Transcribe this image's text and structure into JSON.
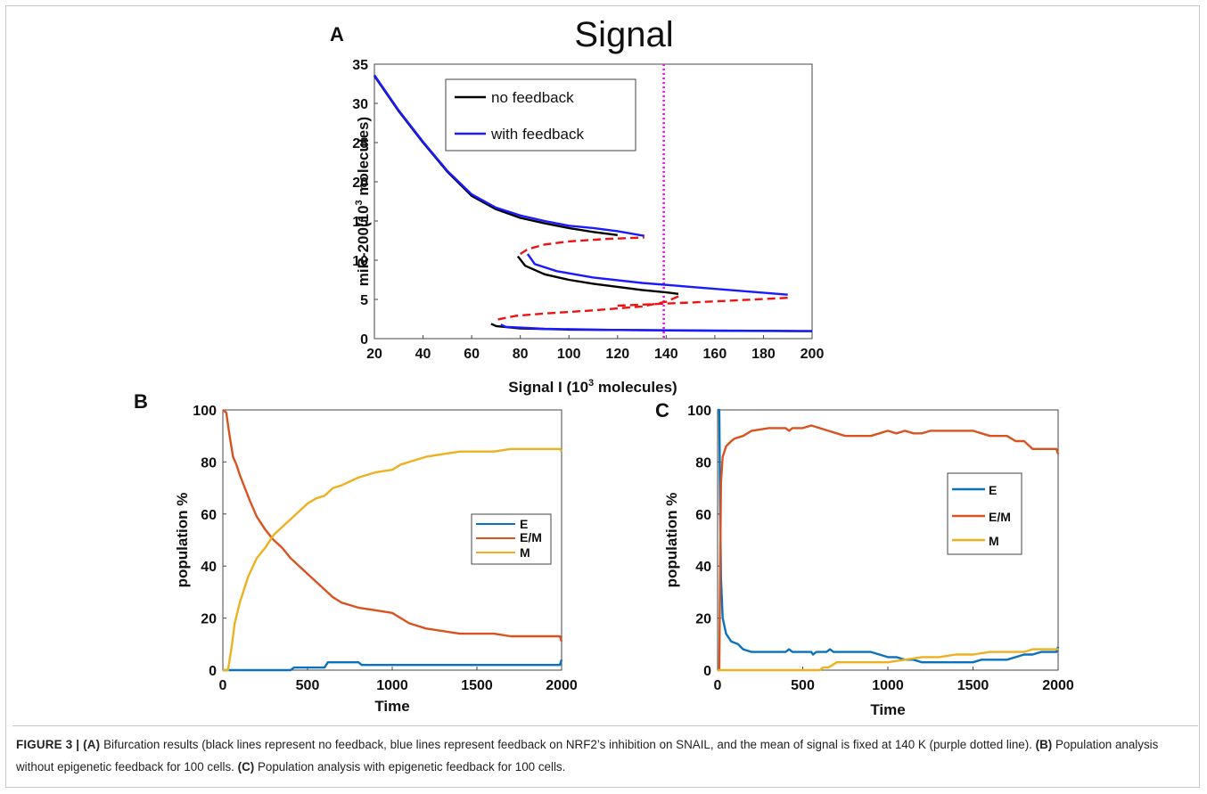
{
  "panels": {
    "A": {
      "letter": "A",
      "title": "Signal",
      "xlabel_pre": "Signal I (10",
      "xlabel_sup": "3",
      "xlabel_post": " molecules)",
      "ylabel_pre": "miR-200(10",
      "ylabel_sup": "3",
      "ylabel_post": " molecules)",
      "legend": [
        "no feedback",
        "with feedback"
      ]
    },
    "B": {
      "letter": "B",
      "xlabel": "Time",
      "ylabel": "population %",
      "legend": [
        "E",
        "E/M",
        "M"
      ]
    },
    "C": {
      "letter": "C",
      "xlabel": "Time",
      "ylabel": "population %",
      "legend": [
        "E",
        "E/M",
        "M"
      ]
    }
  },
  "chart_data": [
    {
      "panel": "A",
      "type": "line",
      "title": "Signal",
      "xlim": [
        20,
        200
      ],
      "ylim": [
        0,
        35
      ],
      "xticks": [
        20,
        40,
        60,
        80,
        100,
        120,
        140,
        160,
        180,
        200
      ],
      "yticks": [
        0,
        5,
        10,
        15,
        20,
        25,
        30,
        35
      ],
      "vline": {
        "x": 139,
        "color": "#ff00ff",
        "style": "dotted"
      },
      "series": [
        {
          "name": "no feedback",
          "color": "#000000",
          "style": "solid",
          "segments": [
            [
              [
                20,
                33.5
              ],
              [
                30,
                29
              ],
              [
                40,
                25
              ],
              [
                50,
                21.3
              ],
              [
                60,
                18.2
              ],
              [
                70,
                16.5
              ],
              [
                80,
                15.4
              ],
              [
                90,
                14.7
              ],
              [
                100,
                14.1
              ],
              [
                110,
                13.6
              ],
              [
                120,
                13.2
              ]
            ],
            [
              [
                79,
                10.5
              ],
              [
                82,
                9.3
              ],
              [
                90,
                8.2
              ],
              [
                100,
                7.5
              ],
              [
                110,
                7
              ],
              [
                120,
                6.6
              ],
              [
                130,
                6.2
              ],
              [
                140,
                5.9
              ],
              [
                145,
                5.7
              ]
            ],
            [
              [
                68,
                1.9
              ],
              [
                70,
                1.6
              ],
              [
                80,
                1.3
              ],
              [
                100,
                1.15
              ],
              [
                150,
                1.05
              ],
              [
                200,
                0.95
              ]
            ]
          ]
        },
        {
          "name": "with feedback",
          "color": "#1a1aff",
          "style": "solid",
          "segments": [
            [
              [
                20,
                33.6
              ],
              [
                30,
                29.1
              ],
              [
                40,
                25.1
              ],
              [
                50,
                21.4
              ],
              [
                60,
                18.4
              ],
              [
                70,
                16.7
              ],
              [
                80,
                15.7
              ],
              [
                90,
                15
              ],
              [
                100,
                14.4
              ],
              [
                110,
                14.1
              ],
              [
                120,
                13.7
              ],
              [
                131,
                13.1
              ]
            ],
            [
              [
                83,
                10.8
              ],
              [
                86,
                9.5
              ],
              [
                95,
                8.6
              ],
              [
                110,
                7.8
              ],
              [
                130,
                7.1
              ],
              [
                150,
                6.6
              ],
              [
                170,
                6.1
              ],
              [
                190,
                5.6
              ]
            ],
            [
              [
                72,
                1.8
              ],
              [
                74,
                1.5
              ],
              [
                90,
                1.25
              ],
              [
                120,
                1.1
              ],
              [
                160,
                1.0
              ],
              [
                200,
                0.95
              ]
            ]
          ]
        },
        {
          "name": "",
          "color": "#ee1111",
          "style": "dashed",
          "segments": [
            [
              [
                80,
                10.8
              ],
              [
                83,
                11.4
              ],
              [
                90,
                12
              ],
              [
                100,
                12.4
              ],
              [
                115,
                12.7
              ],
              [
                131,
                12.9
              ]
            ],
            [
              [
                145,
                5.4
              ],
              [
                140,
                4.7
              ],
              [
                130,
                4.1
              ],
              [
                110,
                3.6
              ],
              [
                90,
                3.2
              ],
              [
                78,
                2.9
              ],
              [
                70,
                2.4
              ]
            ],
            [
              [
                120,
                4.2
              ],
              [
                150,
                4.6
              ],
              [
                170,
                4.9
              ],
              [
                190,
                5.2
              ]
            ]
          ]
        }
      ]
    },
    {
      "panel": "B",
      "type": "line",
      "xlabel": "Time",
      "ylabel": "population %",
      "xlim": [
        0,
        2000
      ],
      "ylim": [
        0,
        100
      ],
      "xticks": [
        0,
        500,
        1000,
        1500,
        2000
      ],
      "yticks": [
        0,
        20,
        40,
        60,
        80,
        100
      ],
      "legend_position": "right",
      "series": [
        {
          "name": "E",
          "color": "#0a72bd",
          "points": [
            [
              0,
              0
            ],
            [
              400,
              0
            ],
            [
              420,
              1
            ],
            [
              600,
              1
            ],
            [
              620,
              3
            ],
            [
              800,
              3
            ],
            [
              820,
              2
            ],
            [
              1990,
              2
            ],
            [
              2000,
              4
            ]
          ]
        },
        {
          "name": "E/M",
          "color": "#d9531e",
          "points": [
            [
              0,
              100
            ],
            [
              20,
              99
            ],
            [
              40,
              90
            ],
            [
              60,
              82
            ],
            [
              80,
              79
            ],
            [
              100,
              75
            ],
            [
              130,
              70
            ],
            [
              160,
              65
            ],
            [
              200,
              59
            ],
            [
              250,
              54
            ],
            [
              300,
              50
            ],
            [
              350,
              47
            ],
            [
              400,
              43
            ],
            [
              450,
              40
            ],
            [
              500,
              37
            ],
            [
              550,
              34
            ],
            [
              600,
              31
            ],
            [
              650,
              28
            ],
            [
              700,
              26
            ],
            [
              800,
              24
            ],
            [
              900,
              23
            ],
            [
              1000,
              22
            ],
            [
              1050,
              20
            ],
            [
              1100,
              18
            ],
            [
              1150,
              17
            ],
            [
              1200,
              16
            ],
            [
              1300,
              15
            ],
            [
              1400,
              14
            ],
            [
              1500,
              14
            ],
            [
              1600,
              14
            ],
            [
              1700,
              13
            ],
            [
              1800,
              13
            ],
            [
              1900,
              13
            ],
            [
              1990,
              13
            ],
            [
              2000,
              11
            ]
          ]
        },
        {
          "name": "M",
          "color": "#edb120",
          "points": [
            [
              0,
              0
            ],
            [
              30,
              0
            ],
            [
              50,
              8
            ],
            [
              70,
              18
            ],
            [
              100,
              26
            ],
            [
              150,
              36
            ],
            [
              200,
              43
            ],
            [
              250,
              47
            ],
            [
              300,
              52
            ],
            [
              350,
              55
            ],
            [
              400,
              58
            ],
            [
              450,
              61
            ],
            [
              500,
              64
            ],
            [
              550,
              66
            ],
            [
              600,
              67
            ],
            [
              650,
              70
            ],
            [
              700,
              71
            ],
            [
              800,
              74
            ],
            [
              900,
              76
            ],
            [
              1000,
              77
            ],
            [
              1050,
              79
            ],
            [
              1100,
              80
            ],
            [
              1150,
              81
            ],
            [
              1200,
              82
            ],
            [
              1300,
              83
            ],
            [
              1400,
              84
            ],
            [
              1500,
              84
            ],
            [
              1600,
              84
            ],
            [
              1700,
              85
            ],
            [
              1800,
              85
            ],
            [
              1900,
              85
            ],
            [
              1990,
              85
            ],
            [
              2000,
              84
            ]
          ]
        }
      ]
    },
    {
      "panel": "C",
      "type": "line",
      "xlabel": "Time",
      "ylabel": "population %",
      "xlim": [
        0,
        2000
      ],
      "ylim": [
        0,
        100
      ],
      "xticks": [
        0,
        500,
        1000,
        1500,
        2000
      ],
      "yticks": [
        0,
        20,
        40,
        60,
        80,
        100
      ],
      "legend_position": "right",
      "series": [
        {
          "name": "E",
          "color": "#0a72bd",
          "points": [
            [
              0,
              100
            ],
            [
              10,
              100
            ],
            [
              15,
              60
            ],
            [
              20,
              35
            ],
            [
              30,
              20
            ],
            [
              50,
              14
            ],
            [
              80,
              11
            ],
            [
              120,
              10
            ],
            [
              150,
              8
            ],
            [
              200,
              7
            ],
            [
              400,
              7
            ],
            [
              420,
              8
            ],
            [
              440,
              7
            ],
            [
              550,
              7
            ],
            [
              560,
              6
            ],
            [
              580,
              7
            ],
            [
              640,
              7
            ],
            [
              660,
              8
            ],
            [
              680,
              7
            ],
            [
              900,
              7
            ],
            [
              950,
              6
            ],
            [
              1000,
              5
            ],
            [
              1050,
              5
            ],
            [
              1100,
              4
            ],
            [
              1150,
              4
            ],
            [
              1200,
              3
            ],
            [
              1500,
              3
            ],
            [
              1550,
              4
            ],
            [
              1700,
              4
            ],
            [
              1750,
              5
            ],
            [
              1800,
              6
            ],
            [
              1850,
              6
            ],
            [
              1900,
              7
            ],
            [
              1990,
              7
            ],
            [
              2000,
              9
            ]
          ]
        },
        {
          "name": "E/M",
          "color": "#d9531e",
          "points": [
            [
              0,
              0
            ],
            [
              10,
              0
            ],
            [
              15,
              40
            ],
            [
              20,
              72
            ],
            [
              30,
              82
            ],
            [
              50,
              86
            ],
            [
              80,
              88
            ],
            [
              100,
              89
            ],
            [
              150,
              90
            ],
            [
              200,
              92
            ],
            [
              300,
              93
            ],
            [
              400,
              93
            ],
            [
              420,
              92
            ],
            [
              440,
              93
            ],
            [
              500,
              93
            ],
            [
              550,
              94
            ],
            [
              600,
              93
            ],
            [
              650,
              92
            ],
            [
              700,
              91
            ],
            [
              750,
              90
            ],
            [
              900,
              90
            ],
            [
              950,
              91
            ],
            [
              1000,
              92
            ],
            [
              1050,
              91
            ],
            [
              1100,
              92
            ],
            [
              1150,
              91
            ],
            [
              1200,
              91
            ],
            [
              1250,
              92
            ],
            [
              1500,
              92
            ],
            [
              1550,
              91
            ],
            [
              1600,
              90
            ],
            [
              1700,
              90
            ],
            [
              1750,
              88
            ],
            [
              1800,
              88
            ],
            [
              1850,
              85
            ],
            [
              1990,
              85
            ],
            [
              2000,
              83
            ]
          ]
        },
        {
          "name": "M",
          "color": "#edb120",
          "points": [
            [
              0,
              0
            ],
            [
              600,
              0
            ],
            [
              620,
              1
            ],
            [
              650,
              1
            ],
            [
              700,
              3
            ],
            [
              1000,
              3
            ],
            [
              1100,
              4
            ],
            [
              1200,
              5
            ],
            [
              1300,
              5
            ],
            [
              1400,
              6
            ],
            [
              1500,
              6
            ],
            [
              1600,
              7
            ],
            [
              1800,
              7
            ],
            [
              1850,
              8
            ],
            [
              1990,
              8
            ],
            [
              2000,
              8
            ]
          ]
        }
      ]
    }
  ],
  "caption": {
    "label": "FIGURE 3 | (A)",
    "text_a": " Bifurcation results (black lines represent no feedback, blue lines represent feedback on NRF2’s inhibition on SNAIL, and the mean of signal is fixed at 140 K (purple dotted line). ",
    "label_b": "(B)",
    "text_b": " Population analysis without epigenetic feedback for 100 cells. ",
    "label_c": "(C)",
    "text_c": " Population analysis with epigenetic feedback for 100 cells."
  }
}
